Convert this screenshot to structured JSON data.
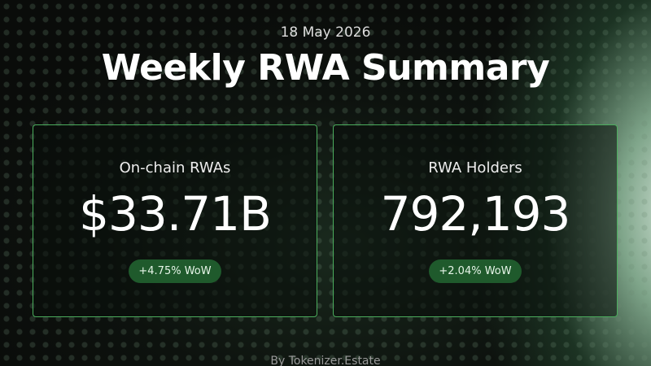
{
  "header": {
    "date": "18 May 2026",
    "title": "Weekly RWA Summary"
  },
  "cards": [
    {
      "label": "On-chain RWAs",
      "value": "$33.71B",
      "change": "+4.75% WoW"
    },
    {
      "label": "RWA Holders",
      "value": "792,193",
      "change": "+2.04% WoW"
    }
  ],
  "footer": "By Tokenizer.Estate"
}
